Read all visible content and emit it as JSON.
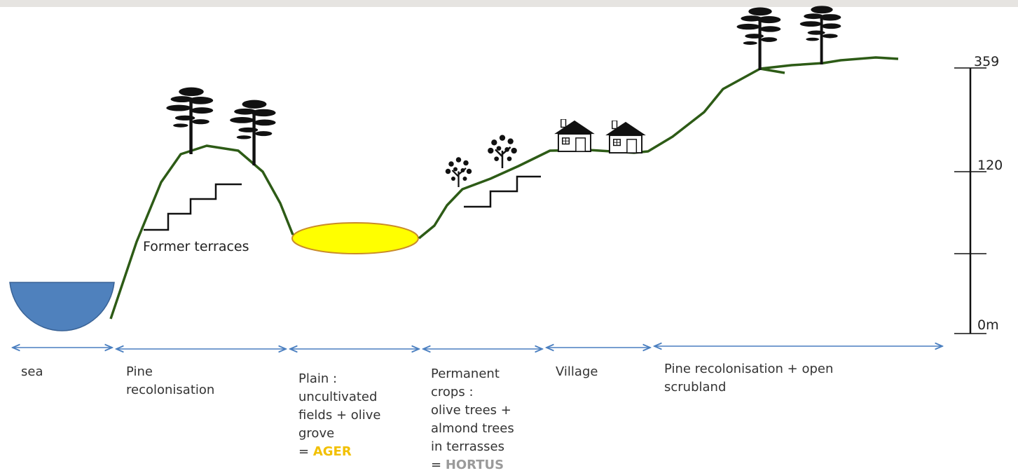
{
  "diagram": {
    "terrace_label": "Former terraces",
    "scale_labels": [
      "359",
      "120",
      "0m"
    ],
    "zones": [
      {
        "lines": [
          "sea"
        ]
      },
      {
        "lines": [
          "Pine",
          "recolonisation"
        ]
      },
      {
        "lines": [
          "Plain :",
          "uncultivated",
          "fields + olive",
          "grove"
        ],
        "prefix": "= ",
        "highlight": "AGER"
      },
      {
        "lines": [
          "Permanent",
          "crops :",
          "olive trees +",
          "almond trees",
          "in terrasses"
        ],
        "prefix": "= ",
        "highlight": "HORTUS"
      },
      {
        "lines": [
          "Village"
        ]
      },
      {
        "lines": [
          "Pine recolonisation + open",
          "scrubland"
        ]
      }
    ]
  }
}
